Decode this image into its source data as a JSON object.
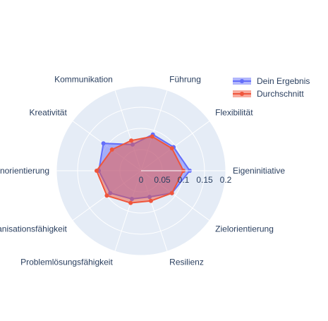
{
  "chart_data": {
    "type": "radar",
    "categories": [
      "Eigeninitiative",
      "Flexibilität",
      "Führung",
      "Kommunikation",
      "Kreativität",
      "Kundenorientierung",
      "Organisationsfähigkeit",
      "Problemlösungsfähigkeit",
      "Resilienz",
      "Zielorientierung"
    ],
    "radial_ticks": [
      "0",
      "0.05",
      "0.1",
      "0.15",
      "0.2"
    ],
    "radial_tick_values": [
      0,
      0.05,
      0.1,
      0.15,
      0.2
    ],
    "rlim": [
      0,
      0.2
    ],
    "series": [
      {
        "name": "Dein Ergebnis",
        "values": [
          0.115,
          0.095,
          0.09,
          0.065,
          0.11,
          0.1,
          0.09,
          0.07,
          0.065,
          0.09
        ],
        "color": "#636efa",
        "fill": "rgba(99,110,250,0.5)"
      },
      {
        "name": "Durchschnitt",
        "values": [
          0.1,
          0.09,
          0.085,
          0.075,
          0.085,
          0.105,
          0.1,
          0.08,
          0.075,
          0.09
        ],
        "color": "#ef553b",
        "fill": "rgba(239,85,59,0.5)"
      }
    ],
    "grid": true,
    "legend_position": "top-right",
    "polar_background": "#e5ecf6"
  }
}
